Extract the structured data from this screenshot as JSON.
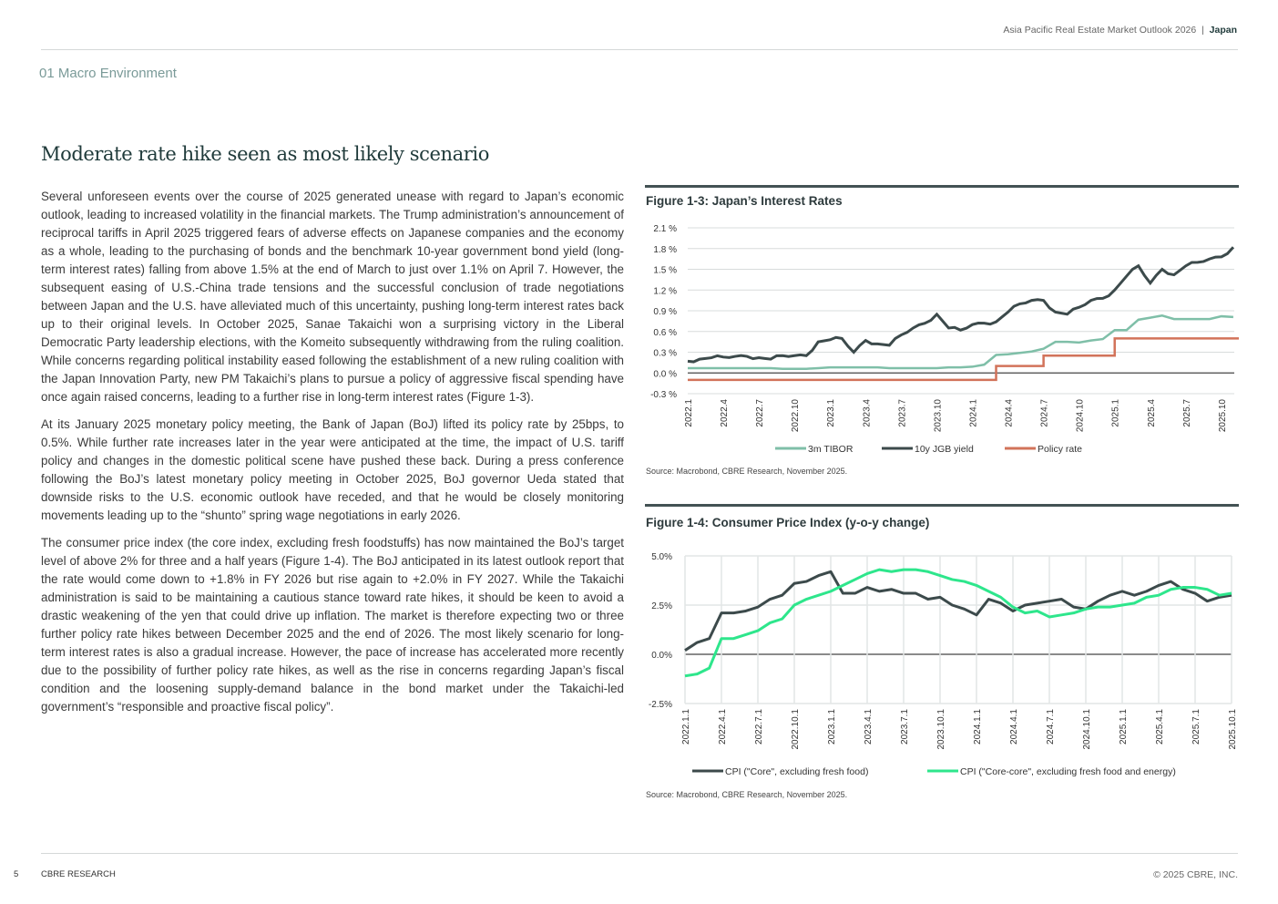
{
  "header": {
    "publication": "Asia Pacific Real Estate Market Outlook 2026",
    "separator": "|",
    "country": "Japan"
  },
  "section": "01 Macro Environment",
  "title": "Moderate rate hike seen as most likely scenario",
  "paragraphs": [
    "Several unforeseen events over the course of 2025 generated unease with regard to Japan’s economic outlook, leading to increased volatility in the financial markets. The Trump administration’s announcement of reciprocal tariffs in April 2025 triggered fears of adverse effects on Japanese companies and the economy as a whole, leading to the purchasing of bonds and the benchmark 10-year government bond yield (long-term interest rates) falling from above 1.5% at the end of March to just over 1.1% on April 7. However, the subsequent easing of U.S.-China trade tensions and the successful conclusion of trade negotiations between Japan and the U.S. have alleviated much of this uncertainty, pushing long-term interest rates back up to their original levels. In October 2025, Sanae Takaichi won a surprising victory in the Liberal Democratic Party leadership elections, with the Komeito subsequently withdrawing from the ruling coalition. While concerns regarding political instability eased following the establishment of a new ruling coalition with the Japan Innovation Party, new PM Takaichi’s plans to pursue a policy of aggressive fiscal spending have once again raised concerns, leading to a further rise in long-term interest rates (Figure 1-3).",
    "At its January 2025 monetary policy meeting, the Bank of Japan (BoJ) lifted its policy rate by 25bps, to 0.5%. While further rate increases later in the year were anticipated at the time, the impact of U.S. tariff policy and changes in the domestic political scene have pushed these back. During a press conference following the BoJ’s latest monetary policy meeting in October 2025, BoJ governor Ueda stated that downside risks to the U.S. economic outlook have receded, and that he would be closely monitoring movements leading up to the “shunto” spring wage negotiations in early 2026.",
    "The consumer price index (the core index, excluding fresh foodstuffs) has now maintained the BoJ’s target level of above 2% for three and a half years (Figure 1-4). The BoJ anticipated in its latest outlook report that the rate would come down to +1.8% in FY 2026 but rise again to +2.0% in FY 2027. While the Takaichi administration is said to be maintaining a cautious stance toward rate hikes, it should be keen to avoid a drastic weakening of the yen that could drive up inflation. The market is therefore expecting two or three further policy rate hikes between December 2025 and the end of 2026. The most likely scenario for long-term interest rates is also a gradual increase. However, the pace of increase has accelerated more recently due to the possibility of further policy rate hikes, as well as the rise in concerns regarding Japan’s fiscal condition and the loosening supply-demand balance in the bond market under the Takaichi-led government’s “responsible and proactive fiscal policy”."
  ],
  "chart_data": [
    {
      "type": "line",
      "title": "Figure 1-3: Japan’s Interest Rates",
      "source": "Source: Macrobond, CBRE Research, November 2025.",
      "ylim": [
        -0.3,
        2.1
      ],
      "yticks": [
        "2.1 %",
        "1.8 %",
        "1.5 %",
        "1.2 %",
        "0.9 %",
        "0.6 %",
        "0.3 %",
        "0.0 %",
        "-0.3 %"
      ],
      "ytick_values": [
        2.1,
        1.8,
        1.5,
        1.2,
        0.9,
        0.6,
        0.3,
        0.0,
        -0.3
      ],
      "xticks": [
        "2022.1",
        "2022.4",
        "2022.7",
        "2022.10",
        "2023.1",
        "2023.4",
        "2023.7",
        "2023.10",
        "2024.1",
        "2024.4",
        "2024.7",
        "2024.10",
        "2025.1",
        "2025.4",
        "2025.7",
        "2025.10"
      ],
      "x_start": "2022.1",
      "x_step": "month",
      "legend": "bottom",
      "series": [
        {
          "name": "3m TIBOR",
          "color": "#7fbfa8",
          "values": [
            0.07,
            0.07,
            0.07,
            0.07,
            0.07,
            0.07,
            0.07,
            0.07,
            0.06,
            0.06,
            0.06,
            0.07,
            0.08,
            0.08,
            0.08,
            0.08,
            0.08,
            0.07,
            0.07,
            0.07,
            0.07,
            0.07,
            0.08,
            0.08,
            0.09,
            0.12,
            0.26,
            0.27,
            0.29,
            0.31,
            0.35,
            0.45,
            0.45,
            0.44,
            0.47,
            0.49,
            0.62,
            0.62,
            0.77,
            0.8,
            0.83,
            0.78,
            0.78,
            0.78,
            0.78,
            0.82,
            0.81
          ]
        },
        {
          "name": "10y JGB yield",
          "color": "#3c4a4b",
          "values": [
            0.17,
            0.2,
            0.22,
            0.23,
            0.24,
            0.24,
            0.22,
            0.2,
            0.25,
            0.25,
            0.25,
            0.45,
            0.48,
            0.5,
            0.3,
            0.47,
            0.42,
            0.4,
            0.55,
            0.65,
            0.72,
            0.85,
            0.65,
            0.62,
            0.7,
            0.72,
            0.74,
            0.88,
            1.0,
            1.05,
            1.05,
            0.88,
            0.85,
            0.95,
            1.05,
            1.08,
            1.2,
            1.4,
            1.55,
            1.3,
            1.5,
            1.42,
            1.55,
            1.6,
            1.65,
            1.68,
            1.82
          ]
        },
        {
          "name": "Policy rate",
          "color": "#d2735a",
          "values": [
            -0.1,
            -0.1,
            -0.1,
            -0.1,
            -0.1,
            -0.1,
            -0.1,
            -0.1,
            -0.1,
            -0.1,
            -0.1,
            -0.1,
            -0.1,
            -0.1,
            -0.1,
            -0.1,
            -0.1,
            -0.1,
            -0.1,
            -0.1,
            -0.1,
            -0.1,
            -0.1,
            -0.1,
            -0.1,
            -0.1,
            0.1,
            0.1,
            0.1,
            0.1,
            0.25,
            0.25,
            0.25,
            0.25,
            0.25,
            0.25,
            0.5,
            0.5,
            0.5,
            0.5,
            0.5,
            0.5,
            0.5,
            0.5,
            0.5,
            0.5,
            0.5
          ]
        }
      ]
    },
    {
      "type": "line",
      "title": "Figure 1-4: Consumer Price Index (y-o-y change)",
      "source": "Source: Macrobond,  CBRE Research, November 2025.",
      "ylim": [
        -2.5,
        5.0
      ],
      "yticks": [
        "5.0%",
        "2.5%",
        "0.0%",
        "-2.5%"
      ],
      "ytick_values": [
        5.0,
        2.5,
        0.0,
        -2.5
      ],
      "xticks": [
        "2022.1.1",
        "2022.4.1",
        "2022.7.1",
        "2022.10.1",
        "2023.1.1",
        "2023.4.1",
        "2023.7.1",
        "2023.10.1",
        "2024.1.1",
        "2024.4.1",
        "2024.7.1",
        "2024.10.1",
        "2025.1.1",
        "2025.4.1",
        "2025.7.1",
        "2025.10.1"
      ],
      "x_start": "2022.1",
      "x_step": "month",
      "legend": "bottom",
      "series": [
        {
          "name": "CPI (\"Core\", excluding fresh food)",
          "color": "#3c4a4b",
          "values": [
            0.2,
            0.6,
            0.8,
            2.1,
            2.1,
            2.2,
            2.4,
            2.8,
            3.0,
            3.6,
            3.7,
            4.0,
            4.2,
            3.1,
            3.1,
            3.4,
            3.2,
            3.3,
            3.1,
            3.1,
            2.8,
            2.9,
            2.5,
            2.3,
            2.0,
            2.8,
            2.6,
            2.2,
            2.5,
            2.6,
            2.7,
            2.8,
            2.4,
            2.3,
            2.7,
            3.0,
            3.2,
            3.0,
            3.2,
            3.5,
            3.7,
            3.3,
            3.1,
            2.7,
            2.9,
            3.0
          ]
        },
        {
          "name": "CPI (\"Core-core\", excluding fresh food and energy)",
          "color": "#2ee68c",
          "values": [
            -1.1,
            -1.0,
            -0.7,
            0.8,
            0.8,
            1.0,
            1.2,
            1.6,
            1.8,
            2.5,
            2.8,
            3.0,
            3.2,
            3.5,
            3.8,
            4.1,
            4.3,
            4.2,
            4.3,
            4.3,
            4.2,
            4.0,
            3.8,
            3.7,
            3.5,
            3.2,
            2.9,
            2.4,
            2.1,
            2.2,
            1.9,
            2.0,
            2.1,
            2.3,
            2.4,
            2.4,
            2.5,
            2.6,
            2.9,
            3.0,
            3.3,
            3.4,
            3.4,
            3.3,
            3.0,
            3.1
          ]
        }
      ]
    }
  ],
  "footer": {
    "page": "5",
    "org": "CBRE RESEARCH",
    "copyright": "© 2025 CBRE, INC."
  }
}
